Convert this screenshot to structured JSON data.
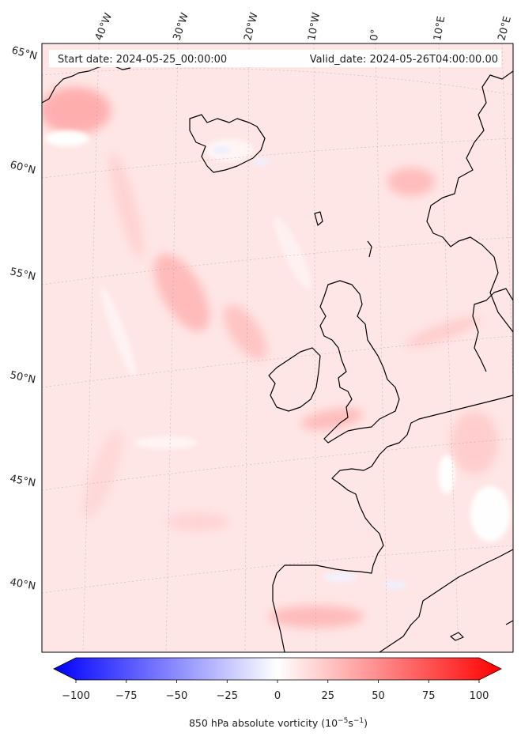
{
  "header": {
    "start_date": "Start date: 2024-05-25_00:00:00",
    "valid_date": "Valid_date: 2024-05-26T04:00:00.00"
  },
  "longitude_labels": [
    "40°W",
    "30°W",
    "20°W",
    "10°W",
    "0°",
    "10°E",
    "20°E"
  ],
  "latitude_labels": [
    "65°N",
    "60°N",
    "55°N",
    "50°N",
    "45°N",
    "40°N"
  ],
  "colorbar": {
    "ticks": [
      "−100",
      "−75",
      "−50",
      "−25",
      "0",
      "25",
      "50",
      "75",
      "100"
    ],
    "label": "850 hPa absolute vorticity (10",
    "label_exp1": "−5",
    "label_mid": "s",
    "label_exp2": "−1",
    "label_end": ")",
    "min": -100,
    "max": 100,
    "low_color": "#0000ff",
    "mid_color": "#ffffff",
    "high_color": "#ff0000"
  },
  "colors": {
    "land_outline": "#000000",
    "field_base": "#ffe4e4",
    "field_strong": "#ffb3b3",
    "field_blue": "#eef0ff"
  }
}
